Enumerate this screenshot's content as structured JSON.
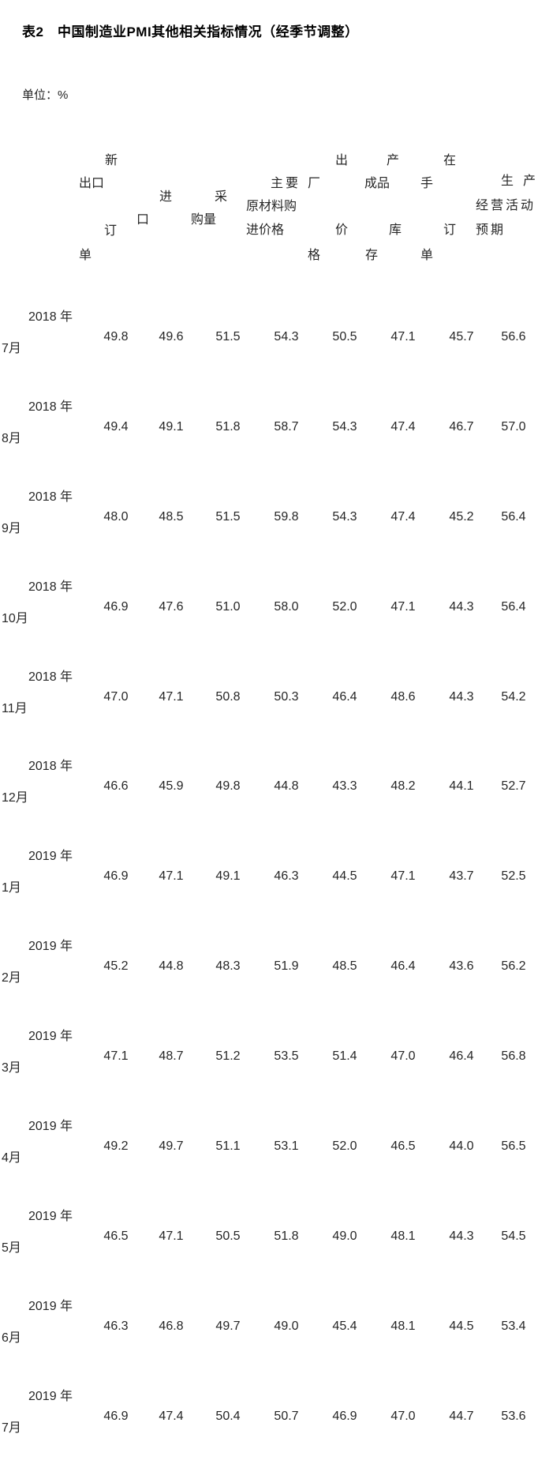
{
  "title": "表2　中国制造业PMI其他相关指标情况（经季节调整）",
  "unit_label": "单位：%",
  "columns": [
    {
      "key": "new_export_orders",
      "label": "新出口订单",
      "lines": [
        "新",
        "出口",
        "订",
        "单"
      ]
    },
    {
      "key": "imports",
      "label": "进口",
      "lines": [
        "进",
        "口"
      ]
    },
    {
      "key": "purchasing_volume",
      "label": "采购量",
      "lines": [
        "采",
        "购量"
      ]
    },
    {
      "key": "main_raw_materials_purchase_price",
      "label": "主要原材料购进价格",
      "lines": [
        "主要",
        "原材料购",
        "进价格"
      ]
    },
    {
      "key": "ex_factory_price",
      "label": "出厂价格",
      "lines": [
        "出",
        "厂",
        "价",
        "格"
      ]
    },
    {
      "key": "finished_goods_inventory",
      "label": "产成品库存",
      "lines": [
        "产",
        "成品",
        "库",
        "存"
      ]
    },
    {
      "key": "backlog_of_orders",
      "label": "在手订单",
      "lines": [
        "在",
        "手",
        "订",
        "单"
      ]
    },
    {
      "key": "business_activity_expectation",
      "label": "生产经营活动预期",
      "lines": [
        "生产",
        "经营活动",
        "预期"
      ]
    }
  ],
  "rows": [
    {
      "period": "2018年7月",
      "year_line": "2018 年",
      "month_line": "7月",
      "values": [
        "49.8",
        "49.6",
        "51.5",
        "54.3",
        "50.5",
        "47.1",
        "45.7",
        "56.6"
      ]
    },
    {
      "period": "2018年8月",
      "year_line": "2018 年",
      "month_line": "8月",
      "values": [
        "49.4",
        "49.1",
        "51.8",
        "58.7",
        "54.3",
        "47.4",
        "46.7",
        "57.0"
      ]
    },
    {
      "period": "2018年9月",
      "year_line": "2018 年",
      "month_line": "9月",
      "values": [
        "48.0",
        "48.5",
        "51.5",
        "59.8",
        "54.3",
        "47.4",
        "45.2",
        "56.4"
      ]
    },
    {
      "period": "2018年10月",
      "year_line": "2018 年",
      "month_line": "10月",
      "values": [
        "46.9",
        "47.6",
        "51.0",
        "58.0",
        "52.0",
        "47.1",
        "44.3",
        "56.4"
      ]
    },
    {
      "period": "2018年11月",
      "year_line": "2018 年",
      "month_line": "11月",
      "values": [
        "47.0",
        "47.1",
        "50.8",
        "50.3",
        "46.4",
        "48.6",
        "44.3",
        "54.2"
      ]
    },
    {
      "period": "2018年12月",
      "year_line": "2018 年",
      "month_line": "12月",
      "values": [
        "46.6",
        "45.9",
        "49.8",
        "44.8",
        "43.3",
        "48.2",
        "44.1",
        "52.7"
      ]
    },
    {
      "period": "2019年1月",
      "year_line": "2019 年",
      "month_line": "1月",
      "values": [
        "46.9",
        "47.1",
        "49.1",
        "46.3",
        "44.5",
        "47.1",
        "43.7",
        "52.5"
      ]
    },
    {
      "period": "2019年2月",
      "year_line": "2019 年",
      "month_line": "2月",
      "values": [
        "45.2",
        "44.8",
        "48.3",
        "51.9",
        "48.5",
        "46.4",
        "43.6",
        "56.2"
      ]
    },
    {
      "period": "2019年3月",
      "year_line": "2019 年",
      "month_line": "3月",
      "values": [
        "47.1",
        "48.7",
        "51.2",
        "53.5",
        "51.4",
        "47.0",
        "46.4",
        "56.8"
      ]
    },
    {
      "period": "2019年4月",
      "year_line": "2019 年",
      "month_line": "4月",
      "values": [
        "49.2",
        "49.7",
        "51.1",
        "53.1",
        "52.0",
        "46.5",
        "44.0",
        "56.5"
      ]
    },
    {
      "period": "2019年5月",
      "year_line": "2019 年",
      "month_line": "5月",
      "values": [
        "46.5",
        "47.1",
        "50.5",
        "51.8",
        "49.0",
        "48.1",
        "44.3",
        "54.5"
      ]
    },
    {
      "period": "2019年6月",
      "year_line": "2019 年",
      "month_line": "6月",
      "values": [
        "46.3",
        "46.8",
        "49.7",
        "49.0",
        "45.4",
        "48.1",
        "44.5",
        "53.4"
      ]
    },
    {
      "period": "2019年7月",
      "year_line": "2019 年",
      "month_line": "7月",
      "values": [
        "46.9",
        "47.4",
        "50.4",
        "50.7",
        "46.9",
        "47.0",
        "44.7",
        "53.6"
      ]
    }
  ]
}
